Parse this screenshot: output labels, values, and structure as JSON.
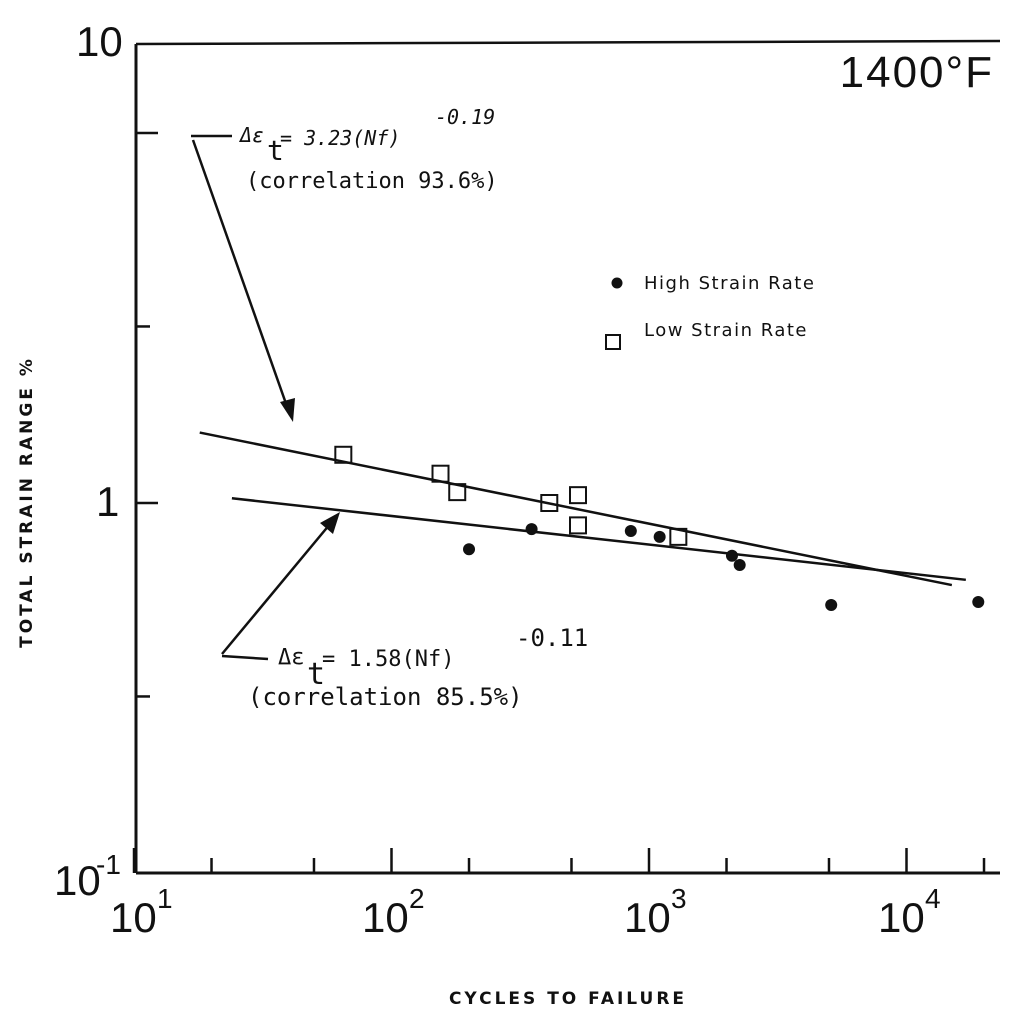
{
  "chart_data": {
    "type": "scatter",
    "title": "1400°F",
    "xlabel": "CYCLES TO FAILURE",
    "ylabel": "TOTAL STRAIN RANGE %",
    "xscale": "log",
    "yscale": "log",
    "xlim": [
      10,
      25000
    ],
    "ylim": [
      0.1,
      10
    ],
    "x_ticks": [
      {
        "base": "10",
        "exp": "1"
      },
      {
        "base": "10",
        "exp": "2"
      },
      {
        "base": "10",
        "exp": "3"
      },
      {
        "base": "10",
        "exp": "4"
      }
    ],
    "y_ticks": [
      {
        "base": "10",
        "exp": "-1"
      },
      {
        "base": "1",
        "exp": ""
      },
      {
        "base": "10",
        "exp": ""
      }
    ],
    "series": [
      {
        "name": "High Strain Rate",
        "marker": "filled-circle",
        "points": [
          {
            "x": 200,
            "y": 0.75
          },
          {
            "x": 350,
            "y": 0.85
          },
          {
            "x": 850,
            "y": 0.84
          },
          {
            "x": 1100,
            "y": 0.81
          },
          {
            "x": 2100,
            "y": 0.72
          },
          {
            "x": 2250,
            "y": 0.68
          },
          {
            "x": 5100,
            "y": 0.53
          },
          {
            "x": 19000,
            "y": 0.54
          }
        ]
      },
      {
        "name": "Low Strain Rate",
        "marker": "open-square",
        "points": [
          {
            "x": 65,
            "y": 1.35
          },
          {
            "x": 155,
            "y": 1.2
          },
          {
            "x": 180,
            "y": 1.07
          },
          {
            "x": 410,
            "y": 1.0
          },
          {
            "x": 530,
            "y": 1.05
          },
          {
            "x": 530,
            "y": 0.87
          },
          {
            "x": 1300,
            "y": 0.81
          }
        ]
      }
    ],
    "fit_lines": [
      {
        "equation_lhs": "Δε",
        "equation_sub": "t",
        "equation_rhs": " = 3.23(Nf)",
        "equation_exp": "-0.19",
        "correlation": "(correlation 93.6%)",
        "x_range": [
          18,
          15000
        ],
        "y_range": [
          1.55,
          0.6
        ]
      },
      {
        "equation_lhs": "Δε",
        "equation_sub": "t",
        "equation_rhs": " = 1.58(Nf)",
        "equation_exp": "-0.11",
        "correlation": "(correlation 85.5%)",
        "x_range": [
          24,
          17000
        ],
        "y_range": [
          1.03,
          0.62
        ]
      }
    ],
    "legend_position": "upper-right",
    "grid": false
  }
}
